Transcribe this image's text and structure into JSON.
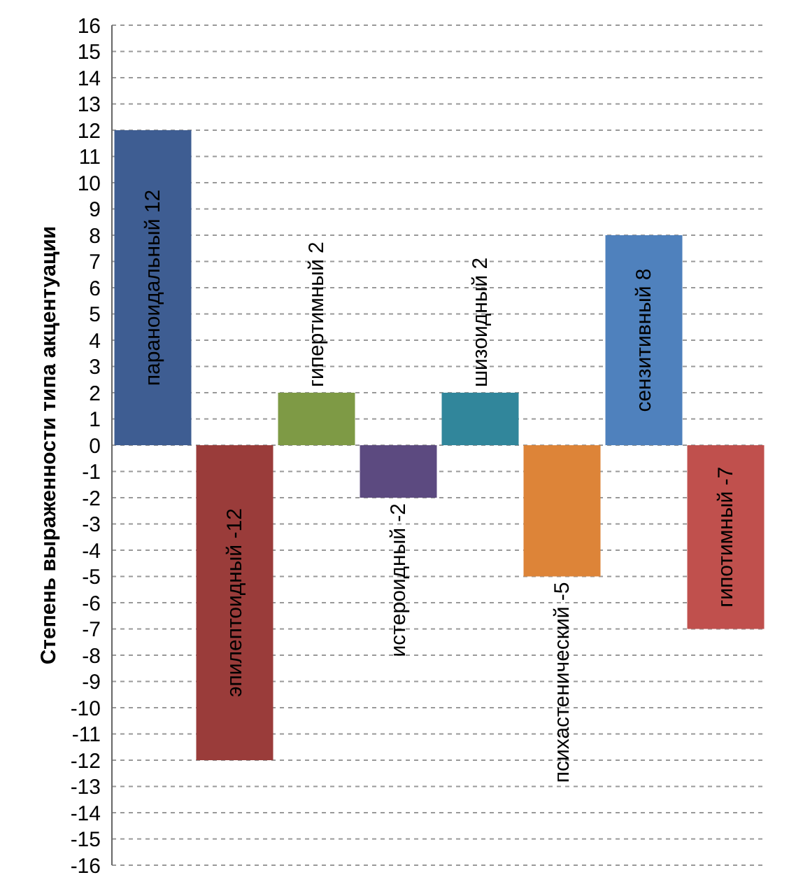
{
  "chart_data": {
    "type": "bar",
    "ylabel": "Степень выраженности типа акцентуации",
    "categories": [
      "параноидальный 12",
      "эпилептоидный -12",
      "гипертимный 2",
      "истероидный -2",
      "шизоидный 2",
      "психастенический -5",
      "сензитивный 8",
      "гипотимный -7"
    ],
    "values": [
      12,
      -12,
      2,
      -2,
      2,
      -5,
      8,
      -7
    ],
    "colors": [
      "#3e5d92",
      "#9a3c3a",
      "#7e9a45",
      "#5c4a80",
      "#31869b",
      "#dd8438",
      "#4f81bd",
      "#c0504d"
    ],
    "ylim": [
      -16,
      16
    ],
    "yticks": [
      -16,
      -15,
      -14,
      -13,
      -12,
      -11,
      -10,
      -9,
      -8,
      -7,
      -6,
      -5,
      -4,
      -3,
      -2,
      -1,
      0,
      1,
      2,
      3,
      4,
      5,
      6,
      7,
      8,
      9,
      10,
      11,
      12,
      13,
      14,
      15,
      16
    ],
    "grid": "y",
    "tick_labels": "y"
  }
}
